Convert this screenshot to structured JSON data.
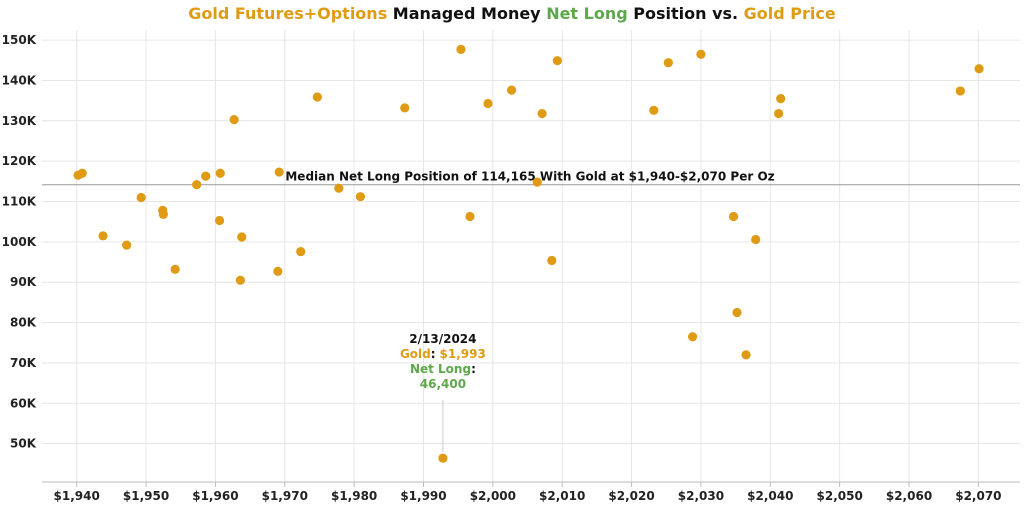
{
  "title": {
    "part1": "Gold Futures+Options",
    "part2": " Managed Money ",
    "part3": "Net Long",
    "part4": " Position vs. ",
    "part5": "Gold Price"
  },
  "colors": {
    "gold": "#E09B14",
    "green": "#5CA84A",
    "dark": "#111111",
    "grid": "#e6e6e6",
    "median": "#999999"
  },
  "chart_data": {
    "type": "scatter",
    "x_ticks": [
      1940,
      1950,
      1960,
      1970,
      1980,
      1990,
      2000,
      2010,
      2020,
      2030,
      2040,
      2050,
      2060,
      2070
    ],
    "x_tick_labels": [
      "$1,940",
      "$1,950",
      "$1,960",
      "$1,970",
      "$1,980",
      "$1,990",
      "$2,000",
      "$2,010",
      "$2,020",
      "$2,030",
      "$2,040",
      "$2,050",
      "$2,060",
      "$2,070"
    ],
    "y_ticks": [
      50000,
      60000,
      70000,
      80000,
      90000,
      100000,
      110000,
      120000,
      130000,
      140000,
      150000
    ],
    "y_tick_labels": [
      "50K",
      "60K",
      "70K",
      "80K",
      "90K",
      "100K",
      "110K",
      "120K",
      "130K",
      "140K",
      "150K"
    ],
    "xlim": [
      1935,
      2076
    ],
    "ylim": [
      40500,
      152500
    ],
    "grid": true,
    "median_y": 114165,
    "median_label": "Median Net Long Position of 114,165 With Gold at $1,940-$2,070 Per Oz",
    "points": [
      {
        "x": 1940.2,
        "y": 116500
      },
      {
        "x": 1940.8,
        "y": 117000
      },
      {
        "x": 1943.8,
        "y": 101500
      },
      {
        "x": 1947.2,
        "y": 99200
      },
      {
        "x": 1949.3,
        "y": 111000
      },
      {
        "x": 1952.4,
        "y": 107800
      },
      {
        "x": 1952.5,
        "y": 106800
      },
      {
        "x": 1954.2,
        "y": 93200
      },
      {
        "x": 1957.3,
        "y": 114200
      },
      {
        "x": 1958.6,
        "y": 116300
      },
      {
        "x": 1960.6,
        "y": 105300
      },
      {
        "x": 1960.7,
        "y": 117000
      },
      {
        "x": 1962.7,
        "y": 130300
      },
      {
        "x": 1963.6,
        "y": 90500
      },
      {
        "x": 1963.8,
        "y": 101200
      },
      {
        "x": 1969.0,
        "y": 92700
      },
      {
        "x": 1969.2,
        "y": 117300
      },
      {
        "x": 1972.3,
        "y": 97600
      },
      {
        "x": 1974.7,
        "y": 135900
      },
      {
        "x": 1977.8,
        "y": 113300
      },
      {
        "x": 1980.9,
        "y": 111200
      },
      {
        "x": 1987.3,
        "y": 133200
      },
      {
        "x": 1992.8,
        "y": 46400
      },
      {
        "x": 1995.4,
        "y": 147700
      },
      {
        "x": 1996.7,
        "y": 106300
      },
      {
        "x": 1999.3,
        "y": 134300
      },
      {
        "x": 2002.7,
        "y": 137600
      },
      {
        "x": 2006.4,
        "y": 114800
      },
      {
        "x": 2007.1,
        "y": 131800
      },
      {
        "x": 2008.5,
        "y": 95400
      },
      {
        "x": 2009.3,
        "y": 144900
      },
      {
        "x": 2023.2,
        "y": 132600
      },
      {
        "x": 2025.3,
        "y": 144400
      },
      {
        "x": 2028.8,
        "y": 76500
      },
      {
        "x": 2030.0,
        "y": 146500
      },
      {
        "x": 2034.7,
        "y": 106300
      },
      {
        "x": 2035.2,
        "y": 82500
      },
      {
        "x": 2036.5,
        "y": 72000
      },
      {
        "x": 2037.9,
        "y": 100600
      },
      {
        "x": 2041.2,
        "y": 131800
      },
      {
        "x": 2041.5,
        "y": 135500
      },
      {
        "x": 2067.4,
        "y": 137400
      },
      {
        "x": 2070.1,
        "y": 142900
      }
    ],
    "annotation": {
      "x": 1992.8,
      "y": 46400,
      "date": "2/13/2024",
      "gold_label": "Gold",
      "colon": ":",
      "gold_value": "$1,993",
      "net_label": "Net Long",
      "net_value": "46,400"
    }
  }
}
